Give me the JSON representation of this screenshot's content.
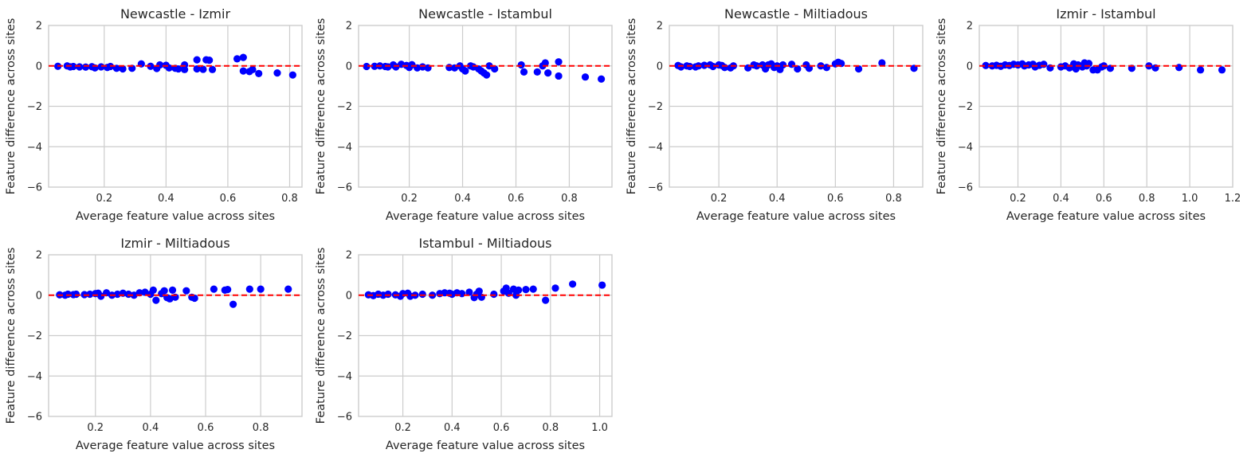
{
  "figure": {
    "background": "#ffffff"
  },
  "style": {
    "point_color": "#0000ff",
    "zero_line_color": "#ff0000",
    "grid_color": "#cccccc"
  },
  "chart_data": [
    {
      "type": "scatter",
      "title": "Newcastle - Izmir",
      "xlabel": "Average feature value across sites",
      "ylabel": "Feature difference across sites",
      "ylim": [
        -6,
        2
      ],
      "xlim": [
        0.02,
        0.84
      ],
      "xticks": [
        0.2,
        0.4,
        0.6,
        0.8
      ],
      "xtick_labels": [
        "0.2",
        "0.4",
        "0.6",
        "0.8"
      ],
      "yticks": [
        -6,
        -4,
        -2,
        0,
        2
      ],
      "ytick_labels": [
        "−6",
        "−4",
        "−2",
        "0",
        "2"
      ],
      "grid": true,
      "reference_line": {
        "y": 0,
        "style": "dashed",
        "color": "#ff0000"
      },
      "points": [
        [
          0.05,
          -0.02
        ],
        [
          0.08,
          0.0
        ],
        [
          0.09,
          -0.05
        ],
        [
          0.1,
          -0.03
        ],
        [
          0.12,
          -0.05
        ],
        [
          0.14,
          -0.06
        ],
        [
          0.16,
          -0.04
        ],
        [
          0.17,
          -0.1
        ],
        [
          0.19,
          -0.05
        ],
        [
          0.21,
          -0.08
        ],
        [
          0.22,
          -0.03
        ],
        [
          0.24,
          -0.12
        ],
        [
          0.26,
          -0.15
        ],
        [
          0.29,
          -0.12
        ],
        [
          0.32,
          0.1
        ],
        [
          0.35,
          -0.02
        ],
        [
          0.37,
          -0.13
        ],
        [
          0.38,
          0.05
        ],
        [
          0.4,
          0.03
        ],
        [
          0.41,
          -0.1
        ],
        [
          0.43,
          -0.12
        ],
        [
          0.44,
          -0.15
        ],
        [
          0.46,
          0.05
        ],
        [
          0.46,
          -0.18
        ],
        [
          0.5,
          0.3
        ],
        [
          0.5,
          -0.15
        ],
        [
          0.52,
          -0.17
        ],
        [
          0.53,
          0.3
        ],
        [
          0.54,
          0.28
        ],
        [
          0.55,
          -0.18
        ],
        [
          0.63,
          0.35
        ],
        [
          0.65,
          0.42
        ],
        [
          0.65,
          -0.25
        ],
        [
          0.67,
          -0.28
        ],
        [
          0.68,
          -0.18
        ],
        [
          0.7,
          -0.38
        ],
        [
          0.76,
          -0.35
        ],
        [
          0.81,
          -0.45
        ]
      ]
    },
    {
      "type": "scatter",
      "title": "Newcastle - Istambul",
      "xlabel": "Average feature value across sites",
      "ylabel": "Feature difference across sites",
      "ylim": [
        -6,
        2
      ],
      "xlim": [
        0.01,
        0.96
      ],
      "xticks": [
        0.2,
        0.4,
        0.6,
        0.8
      ],
      "xtick_labels": [
        "0.2",
        "0.4",
        "0.6",
        "0.8"
      ],
      "yticks": [
        -6,
        -4,
        -2,
        0,
        2
      ],
      "ytick_labels": [
        "−6",
        "−4",
        "−2",
        "0",
        "2"
      ],
      "grid": true,
      "reference_line": {
        "y": 0,
        "style": "dashed",
        "color": "#ff0000"
      },
      "points": [
        [
          0.04,
          -0.03
        ],
        [
          0.07,
          -0.02
        ],
        [
          0.09,
          0.0
        ],
        [
          0.11,
          -0.03
        ],
        [
          0.12,
          -0.05
        ],
        [
          0.14,
          0.05
        ],
        [
          0.15,
          -0.05
        ],
        [
          0.17,
          0.08
        ],
        [
          0.19,
          0.02
        ],
        [
          0.2,
          -0.08
        ],
        [
          0.21,
          0.06
        ],
        [
          0.23,
          -0.1
        ],
        [
          0.25,
          -0.05
        ],
        [
          0.27,
          -0.1
        ],
        [
          0.35,
          -0.08
        ],
        [
          0.37,
          -0.1
        ],
        [
          0.39,
          0.0
        ],
        [
          0.4,
          -0.15
        ],
        [
          0.41,
          -0.25
        ],
        [
          0.43,
          0.0
        ],
        [
          0.44,
          -0.05
        ],
        [
          0.46,
          -0.15
        ],
        [
          0.47,
          -0.25
        ],
        [
          0.48,
          -0.35
        ],
        [
          0.49,
          -0.45
        ],
        [
          0.5,
          0.0
        ],
        [
          0.52,
          -0.15
        ],
        [
          0.62,
          0.05
        ],
        [
          0.63,
          -0.3
        ],
        [
          0.68,
          -0.3
        ],
        [
          0.7,
          0.0
        ],
        [
          0.71,
          0.15
        ],
        [
          0.72,
          -0.35
        ],
        [
          0.76,
          0.2
        ],
        [
          0.76,
          -0.5
        ],
        [
          0.86,
          -0.55
        ],
        [
          0.92,
          -0.65
        ]
      ]
    },
    {
      "type": "scatter",
      "title": "Newcastle - Miltiadous",
      "xlabel": "Average feature value across sites",
      "ylabel": "Feature difference across sites",
      "ylim": [
        -6,
        2
      ],
      "xlim": [
        0.03,
        0.9
      ],
      "xticks": [
        0.2,
        0.4,
        0.6,
        0.8
      ],
      "xtick_labels": [
        "0.2",
        "0.4",
        "0.6",
        "0.8"
      ],
      "yticks": [
        -6,
        -4,
        -2,
        0,
        2
      ],
      "ytick_labels": [
        "−6",
        "−4",
        "−2",
        "0",
        "2"
      ],
      "grid": true,
      "reference_line": {
        "y": 0,
        "style": "dashed",
        "color": "#ff0000"
      },
      "points": [
        [
          0.06,
          0.02
        ],
        [
          0.07,
          -0.05
        ],
        [
          0.09,
          0.0
        ],
        [
          0.1,
          -0.03
        ],
        [
          0.12,
          -0.05
        ],
        [
          0.13,
          0.0
        ],
        [
          0.15,
          0.03
        ],
        [
          0.17,
          0.05
        ],
        [
          0.18,
          -0.03
        ],
        [
          0.2,
          0.05
        ],
        [
          0.21,
          0.02
        ],
        [
          0.22,
          -0.08
        ],
        [
          0.24,
          -0.1
        ],
        [
          0.25,
          0.0
        ],
        [
          0.3,
          -0.1
        ],
        [
          0.32,
          0.05
        ],
        [
          0.33,
          0.0
        ],
        [
          0.35,
          0.05
        ],
        [
          0.36,
          -0.15
        ],
        [
          0.37,
          0.05
        ],
        [
          0.38,
          0.1
        ],
        [
          0.39,
          -0.08
        ],
        [
          0.4,
          0.0
        ],
        [
          0.41,
          -0.18
        ],
        [
          0.42,
          0.05
        ],
        [
          0.45,
          0.08
        ],
        [
          0.47,
          -0.15
        ],
        [
          0.5,
          0.05
        ],
        [
          0.51,
          -0.12
        ],
        [
          0.55,
          0.0
        ],
        [
          0.57,
          -0.08
        ],
        [
          0.6,
          0.1
        ],
        [
          0.61,
          0.18
        ],
        [
          0.62,
          0.12
        ],
        [
          0.68,
          -0.15
        ],
        [
          0.76,
          0.15
        ],
        [
          0.87,
          -0.12
        ]
      ]
    },
    {
      "type": "scatter",
      "title": "Izmir - Istambul",
      "xlabel": "Average feature value across sites",
      "ylabel": "Feature difference across sites",
      "ylim": [
        -6,
        2
      ],
      "xlim": [
        0.02,
        1.2
      ],
      "xticks": [
        0.2,
        0.4,
        0.6,
        0.8,
        1.0,
        1.2
      ],
      "xtick_labels": [
        "0.2",
        "0.4",
        "0.6",
        "0.8",
        "1.0",
        "1.2"
      ],
      "yticks": [
        -6,
        -4,
        -2,
        0,
        2
      ],
      "ytick_labels": [
        "−6",
        "−4",
        "−2",
        "0",
        "2"
      ],
      "grid": true,
      "reference_line": {
        "y": 0,
        "style": "dashed",
        "color": "#ff0000"
      },
      "points": [
        [
          0.05,
          0.02
        ],
        [
          0.08,
          0.0
        ],
        [
          0.1,
          0.03
        ],
        [
          0.12,
          -0.02
        ],
        [
          0.14,
          0.05
        ],
        [
          0.16,
          0.02
        ],
        [
          0.18,
          0.08
        ],
        [
          0.2,
          0.05
        ],
        [
          0.22,
          0.1
        ],
        [
          0.23,
          0.0
        ],
        [
          0.25,
          0.05
        ],
        [
          0.27,
          0.08
        ],
        [
          0.28,
          -0.05
        ],
        [
          0.3,
          0.03
        ],
        [
          0.32,
          0.08
        ],
        [
          0.35,
          -0.1
        ],
        [
          0.4,
          -0.05
        ],
        [
          0.42,
          0.0
        ],
        [
          0.44,
          -0.1
        ],
        [
          0.46,
          0.1
        ],
        [
          0.47,
          -0.15
        ],
        [
          0.48,
          0.05
        ],
        [
          0.5,
          -0.05
        ],
        [
          0.51,
          0.15
        ],
        [
          0.52,
          0.0
        ],
        [
          0.53,
          0.12
        ],
        [
          0.55,
          -0.2
        ],
        [
          0.57,
          -0.2
        ],
        [
          0.59,
          -0.05
        ],
        [
          0.6,
          0.0
        ],
        [
          0.63,
          -0.12
        ],
        [
          0.73,
          -0.12
        ],
        [
          0.81,
          0.0
        ],
        [
          0.84,
          -0.1
        ],
        [
          0.95,
          -0.08
        ],
        [
          1.05,
          -0.2
        ],
        [
          1.15,
          -0.2
        ]
      ]
    },
    {
      "type": "scatter",
      "title": "Izmir - Miltiadous",
      "xlabel": "Average feature value across sites",
      "ylabel": "Feature difference across sites",
      "ylim": [
        -6,
        2
      ],
      "xlim": [
        0.03,
        0.95
      ],
      "xticks": [
        0.2,
        0.4,
        0.6,
        0.8
      ],
      "xtick_labels": [
        "0.2",
        "0.4",
        "0.6",
        "0.8"
      ],
      "yticks": [
        -6,
        -4,
        -2,
        0,
        2
      ],
      "ytick_labels": [
        "−6",
        "−4",
        "−2",
        "0",
        "2"
      ],
      "grid": true,
      "reference_line": {
        "y": 0,
        "style": "dashed",
        "color": "#ff0000"
      },
      "points": [
        [
          0.07,
          0.02
        ],
        [
          0.09,
          0.0
        ],
        [
          0.1,
          0.05
        ],
        [
          0.12,
          0.03
        ],
        [
          0.13,
          0.05
        ],
        [
          0.16,
          0.03
        ],
        [
          0.18,
          0.05
        ],
        [
          0.2,
          0.08
        ],
        [
          0.21,
          0.1
        ],
        [
          0.22,
          -0.05
        ],
        [
          0.24,
          0.12
        ],
        [
          0.26,
          0.0
        ],
        [
          0.28,
          0.05
        ],
        [
          0.3,
          0.1
        ],
        [
          0.32,
          0.05
        ],
        [
          0.34,
          0.0
        ],
        [
          0.36,
          0.12
        ],
        [
          0.38,
          0.15
        ],
        [
          0.4,
          0.05
        ],
        [
          0.41,
          0.25
        ],
        [
          0.42,
          -0.25
        ],
        [
          0.44,
          0.08
        ],
        [
          0.45,
          0.22
        ],
        [
          0.46,
          -0.12
        ],
        [
          0.47,
          -0.18
        ],
        [
          0.48,
          0.25
        ],
        [
          0.49,
          -0.1
        ],
        [
          0.53,
          0.22
        ],
        [
          0.55,
          -0.1
        ],
        [
          0.56,
          -0.15
        ],
        [
          0.63,
          0.3
        ],
        [
          0.67,
          0.25
        ],
        [
          0.68,
          0.28
        ],
        [
          0.7,
          -0.45
        ],
        [
          0.76,
          0.3
        ],
        [
          0.8,
          0.3
        ],
        [
          0.9,
          0.3
        ]
      ]
    },
    {
      "type": "scatter",
      "title": "Istambul - Miltiadous",
      "xlabel": "Average feature value across sites",
      "ylabel": "Feature difference across sites",
      "ylim": [
        -6,
        2
      ],
      "xlim": [
        0.02,
        1.05
      ],
      "xticks": [
        0.2,
        0.4,
        0.6,
        0.8,
        1.0
      ],
      "xtick_labels": [
        "0.2",
        "0.4",
        "0.6",
        "0.8",
        "1.0"
      ],
      "yticks": [
        -6,
        -4,
        -2,
        0,
        2
      ],
      "ytick_labels": [
        "−6",
        "−4",
        "−2",
        "0",
        "2"
      ],
      "grid": true,
      "reference_line": {
        "y": 0,
        "style": "dashed",
        "color": "#ff0000"
      },
      "points": [
        [
          0.06,
          0.02
        ],
        [
          0.08,
          -0.02
        ],
        [
          0.1,
          0.05
        ],
        [
          0.12,
          0.0
        ],
        [
          0.14,
          0.05
        ],
        [
          0.17,
          0.02
        ],
        [
          0.19,
          -0.05
        ],
        [
          0.2,
          0.08
        ],
        [
          0.22,
          0.1
        ],
        [
          0.23,
          -0.05
        ],
        [
          0.25,
          0.0
        ],
        [
          0.28,
          0.05
        ],
        [
          0.32,
          0.0
        ],
        [
          0.35,
          0.08
        ],
        [
          0.37,
          0.12
        ],
        [
          0.39,
          0.1
        ],
        [
          0.4,
          0.05
        ],
        [
          0.42,
          0.12
        ],
        [
          0.44,
          0.08
        ],
        [
          0.47,
          0.15
        ],
        [
          0.49,
          -0.12
        ],
        [
          0.5,
          0.05
        ],
        [
          0.51,
          0.2
        ],
        [
          0.52,
          -0.1
        ],
        [
          0.57,
          0.05
        ],
        [
          0.61,
          0.2
        ],
        [
          0.62,
          0.35
        ],
        [
          0.63,
          0.1
        ],
        [
          0.65,
          0.3
        ],
        [
          0.66,
          0.0
        ],
        [
          0.67,
          0.25
        ],
        [
          0.7,
          0.28
        ],
        [
          0.73,
          0.3
        ],
        [
          0.78,
          -0.25
        ],
        [
          0.82,
          0.35
        ],
        [
          0.89,
          0.55
        ],
        [
          1.01,
          0.5
        ]
      ]
    }
  ]
}
